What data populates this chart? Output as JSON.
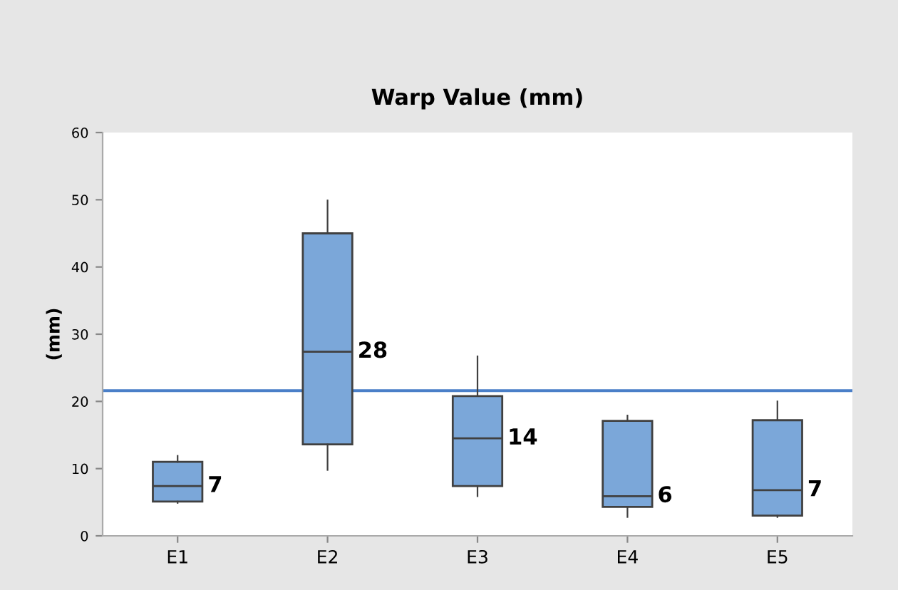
{
  "chart_data": {
    "type": "box",
    "title": "Warp Value (mm)",
    "ylabel": "(mm)",
    "categories": [
      "E1",
      "E2",
      "E3",
      "E4",
      "E5"
    ],
    "boxes": [
      {
        "low": 4.9,
        "q1": 5.1,
        "median": 7.4,
        "q3": 11.0,
        "high": 11.9
      },
      {
        "low": 9.8,
        "q1": 13.6,
        "median": 27.4,
        "q3": 45.0,
        "high": 49.9
      },
      {
        "low": 5.9,
        "q1": 7.4,
        "median": 14.5,
        "q3": 20.8,
        "high": 26.7
      },
      {
        "low": 2.8,
        "q1": 4.3,
        "median": 5.9,
        "q3": 17.1,
        "high": 17.9
      },
      {
        "low": 2.8,
        "q1": 3.0,
        "median": 6.8,
        "q3": 17.2,
        "high": 20.0
      }
    ],
    "value_labels": [
      "7",
      "28",
      "14",
      "6",
      "7"
    ],
    "color": "#7ba7d9",
    "ylim": [
      0,
      60
    ],
    "yticks": [
      0,
      10,
      20,
      30,
      40,
      50,
      60
    ],
    "ref_lines": [
      {
        "axis": "y",
        "value": 21.6,
        "color": "#4a7fc8"
      }
    ],
    "grid": false,
    "legend": false
  }
}
